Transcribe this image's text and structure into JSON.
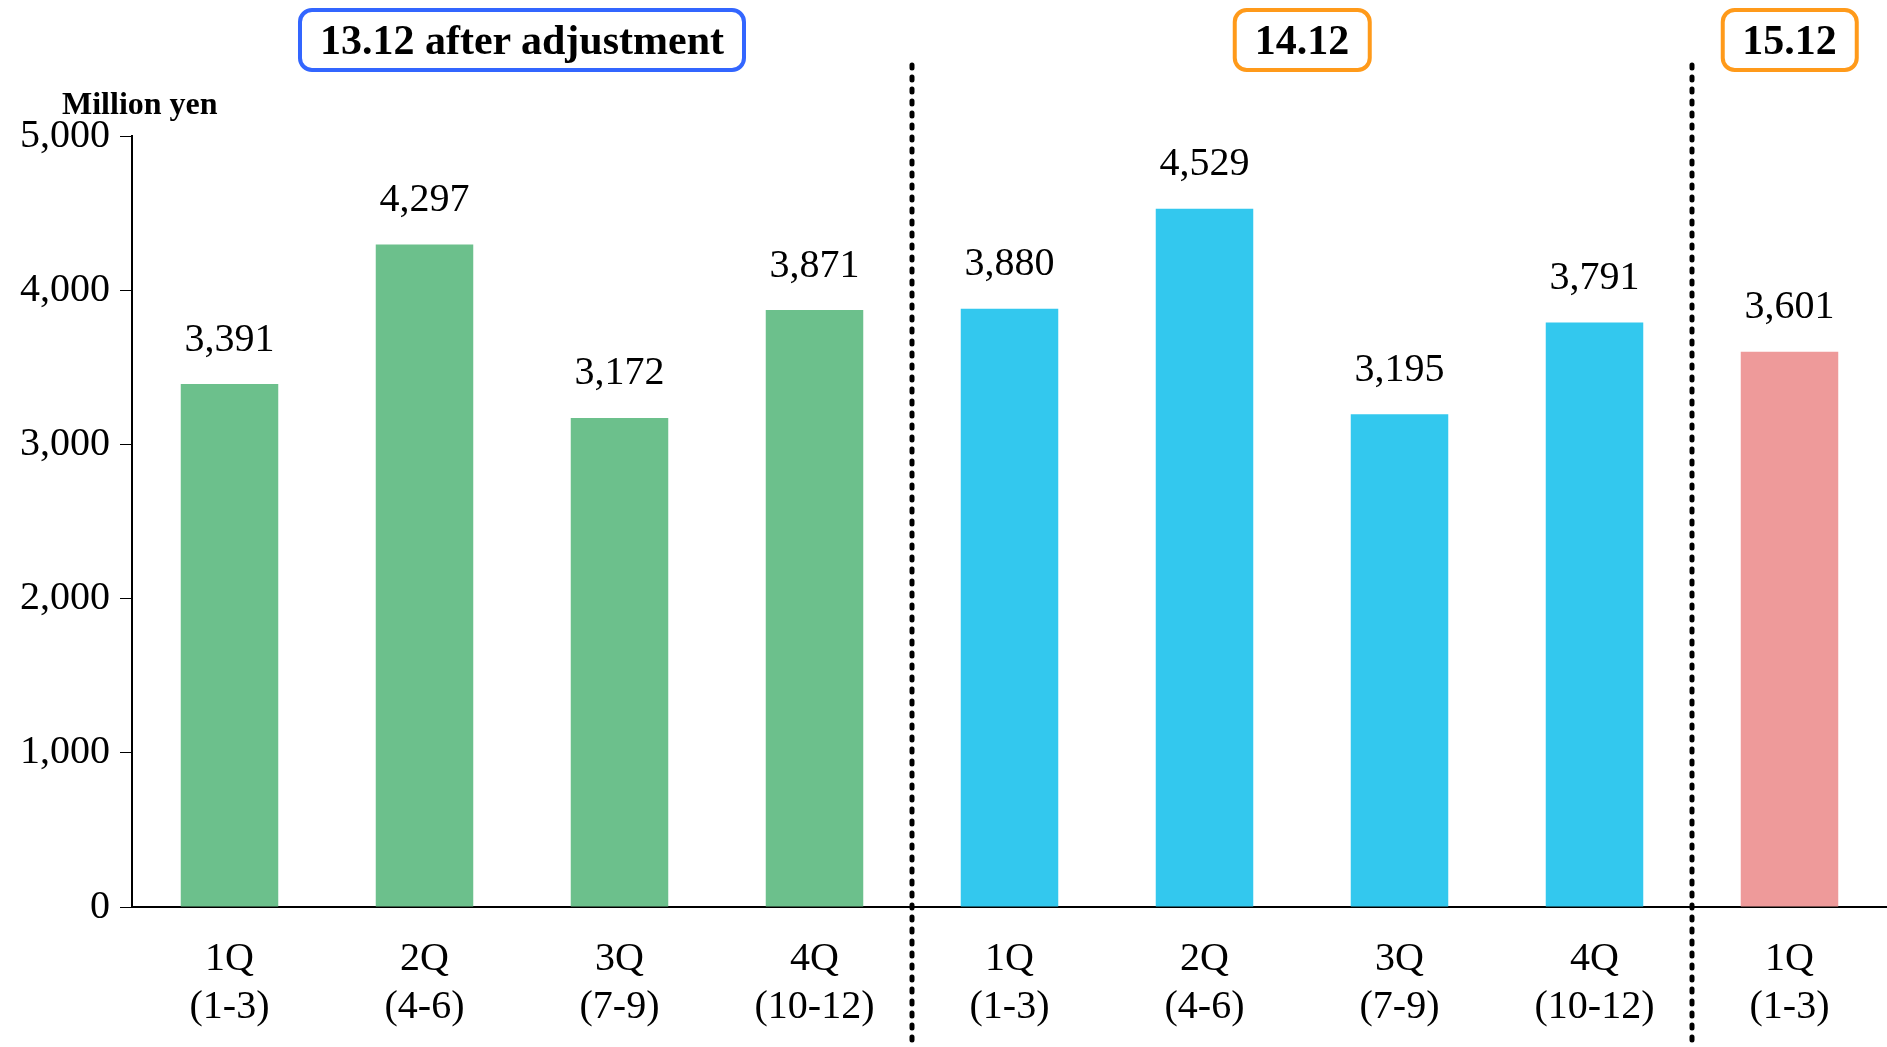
{
  "chart_data": {
    "type": "bar",
    "ylabel": "Million yen",
    "categories": [
      "1Q\n(1-3)",
      "2Q\n(4-6)",
      "3Q\n(7-9)",
      "4Q\n(10-12)",
      "1Q\n(1-3)",
      "2Q\n(4-6)",
      "3Q\n(7-9)",
      "4Q\n(10-12)",
      "1Q\n(1-3)"
    ],
    "values": [
      3391,
      4297,
      3172,
      3871,
      3880,
      4529,
      3195,
      3791,
      3601
    ],
    "colors": [
      "#6cc08c",
      "#6cc08c",
      "#6cc08c",
      "#6cc08c",
      "#33c8ee",
      "#33c8ee",
      "#33c8ee",
      "#33c8ee",
      "#ee9a9a"
    ],
    "ylim": [
      0,
      5000
    ],
    "yticks": [
      0,
      {
        "value": 1000,
        "label": "1,000"
      },
      {
        "value": 2000,
        "label": "2,000"
      },
      {
        "value": 3000,
        "label": "3,000"
      },
      {
        "value": 4000,
        "label": "4,000"
      },
      {
        "value": 5000,
        "label": "5,000"
      }
    ],
    "value_labels": [
      "3,391",
      "4,297",
      "3,172",
      "3,871",
      "3,880",
      "4,529",
      "3,195",
      "3,791",
      "3,601"
    ],
    "grid": false,
    "legend": false,
    "annotations": [
      "13.12 after adjustment",
      "14.12",
      "15.12"
    ]
  }
}
